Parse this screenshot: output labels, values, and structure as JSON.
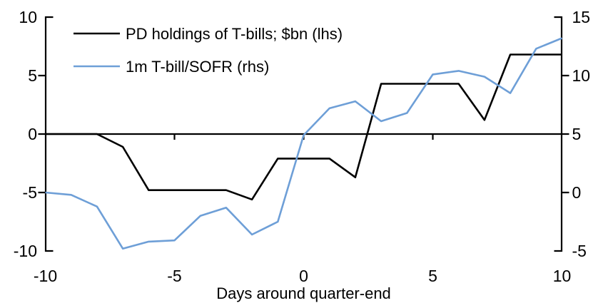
{
  "chart_data": {
    "type": "line",
    "title": "",
    "x_label": "Days around quarter-end",
    "x": [
      -10,
      -9,
      -8,
      -7,
      -6,
      -5,
      -4,
      -3,
      -2,
      -1,
      0,
      1,
      2,
      3,
      4,
      5,
      6,
      7,
      8,
      9,
      10
    ],
    "x_ticks": [
      -10,
      -5,
      0,
      5,
      10
    ],
    "x_range": [
      -10,
      10
    ],
    "left_axis": {
      "min": -10,
      "max": 10,
      "ticks": [
        5,
        0,
        -5
      ],
      "end_labels": [
        10,
        -10
      ]
    },
    "right_axis": {
      "min": -5,
      "max": 15,
      "ticks": [
        10,
        5,
        0
      ],
      "end_labels": [
        15,
        -5
      ]
    },
    "grid": false,
    "zero_line": true,
    "legend_position": "top-left",
    "series": [
      {
        "name": "PD holdings of T-bills; $bn (lhs)",
        "axis": "left",
        "color": "#000000",
        "values": [
          0,
          0,
          0,
          -1.1,
          -4.8,
          -4.8,
          -4.8,
          -4.8,
          -5.6,
          -2.1,
          -2.1,
          -2.1,
          -3.7,
          4.3,
          4.3,
          4.3,
          4.3,
          1.2,
          6.8,
          6.8,
          6.8
        ]
      },
      {
        "name": "1m T-bill/SOFR (rhs)",
        "axis": "right",
        "color": "#6E9FD7",
        "values": [
          0,
          -0.2,
          -1.2,
          -4.8,
          -4.2,
          -4.1,
          -2.0,
          -1.3,
          -3.6,
          -2.5,
          4.9,
          7.2,
          7.8,
          6.1,
          6.8,
          10.1,
          10.4,
          9.9,
          8.5,
          12.3,
          13.2
        ]
      }
    ]
  }
}
